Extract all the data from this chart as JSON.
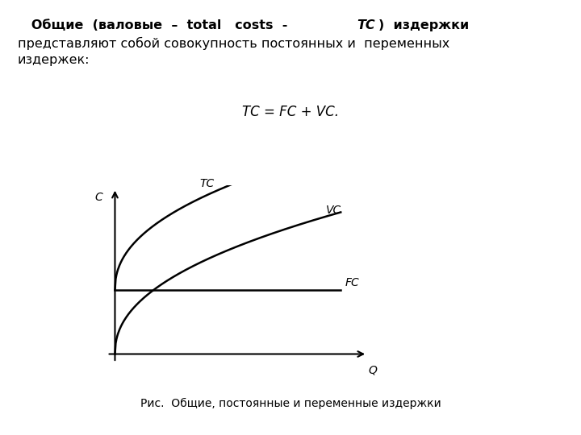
{
  "formula": "TC = FC + VC.",
  "caption": "Рис.  Общие, постоянные и переменные издержки",
  "label_C": "C",
  "label_Q": "Q",
  "label_TC": "TC",
  "label_VC": "VC",
  "label_FC": "FC",
  "fc_level": 0.38,
  "background_color": "#ffffff",
  "line_color": "#000000",
  "text_color": "#000000",
  "fig_width": 7.2,
  "fig_height": 5.4,
  "fig_dpi": 100
}
